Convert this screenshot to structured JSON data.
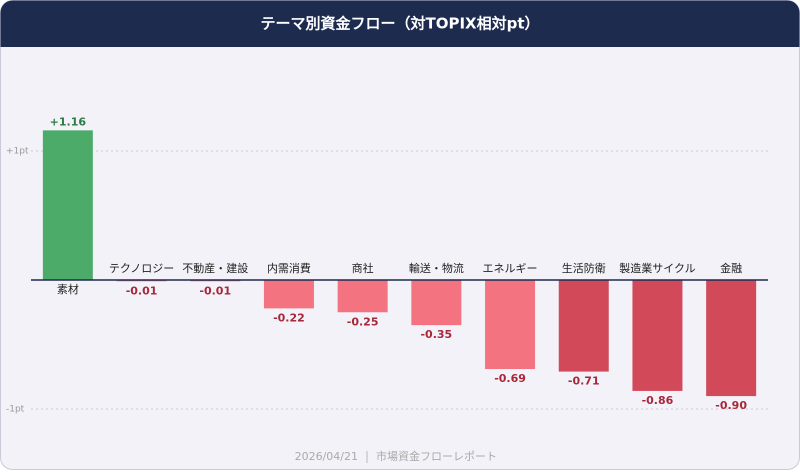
{
  "chart_data": {
    "type": "bar",
    "title": "テーマ別資金フロー（対TOPIX相対pt）",
    "categories": [
      "素材",
      "テクノロジー",
      "不動産・建設",
      "内需消費",
      "商社",
      "輸送・物流",
      "エネルギー",
      "生活防衛",
      "製造業サイクル",
      "金融"
    ],
    "values": [
      1.16,
      -0.01,
      -0.01,
      -0.22,
      -0.25,
      -0.35,
      -0.69,
      -0.71,
      -0.86,
      -0.9
    ],
    "value_labels": [
      "+1.16",
      "-0.01",
      "-0.01",
      "-0.22",
      "-0.25",
      "-0.35",
      "-0.69",
      "-0.71",
      "-0.86",
      "-0.90"
    ],
    "colors": [
      "#4dab6a",
      "#f37381",
      "#f37381",
      "#f37381",
      "#f37381",
      "#f37381",
      "#f37381",
      "#d24a5a",
      "#d24a5a",
      "#d24a5a"
    ],
    "ylim": [
      -1.25,
      1.7
    ],
    "yticks": [
      {
        "value": 1,
        "label": "+1pt"
      },
      {
        "value": -1,
        "label": "-1pt"
      }
    ],
    "grid": true,
    "footer": {
      "date": "2026/04/21",
      "report": "市場資金フローレポート"
    }
  }
}
